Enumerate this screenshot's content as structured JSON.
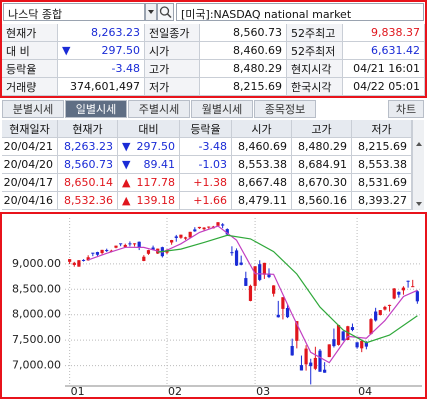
{
  "search": {
    "query": "나스닥 종합",
    "market": "[미국]:NASDAQ national market"
  },
  "quote": [
    [
      {
        "text": "현재가"
      },
      {
        "text": "8,263.23",
        "tone": "down"
      },
      {
        "text": "전일종가"
      },
      {
        "text": "8,560.73"
      },
      {
        "text": "52주최고"
      },
      {
        "text": "9,838.37",
        "tone": "up"
      }
    ],
    [
      {
        "text": "대 비"
      },
      {
        "arrow": "▼",
        "text": "297.50",
        "tone": "down"
      },
      {
        "text": "시가"
      },
      {
        "text": "8,460.69"
      },
      {
        "text": "52주최저"
      },
      {
        "text": "6,631.42",
        "tone": "down"
      }
    ],
    [
      {
        "text": "등락율"
      },
      {
        "text": "-3.48",
        "tone": "down"
      },
      {
        "text": "고가"
      },
      {
        "text": "8,480.29"
      },
      {
        "text": "현지시각"
      },
      {
        "text": "04/21 16:01"
      }
    ],
    [
      {
        "text": "거래량"
      },
      {
        "text": "374,601,497"
      },
      {
        "text": "저가"
      },
      {
        "text": "8,215.69"
      },
      {
        "text": "한국시각"
      },
      {
        "text": "04/22 05:01"
      }
    ]
  ],
  "tabs": {
    "items": [
      "분별시세",
      "일별시세",
      "주별시세",
      "월별시세",
      "종목정보"
    ],
    "active": 1,
    "button": "차트"
  },
  "table": {
    "columns": [
      "현재일자",
      "현재가",
      "대비",
      "등락율",
      "시가",
      "고가",
      "저가"
    ],
    "rows": [
      [
        {
          "text": "20/04/21"
        },
        {
          "text": "8,263.23",
          "tone": "down"
        },
        {
          "arrow": "▼",
          "text": "297.50",
          "tone": "down"
        },
        {
          "text": "-3.48",
          "tone": "down"
        },
        {
          "text": "8,460.69"
        },
        {
          "text": "8,480.29"
        },
        {
          "text": "8,215.69"
        }
      ],
      [
        {
          "text": "20/04/20"
        },
        {
          "text": "8,560.73",
          "tone": "down"
        },
        {
          "arrow": "▼",
          "text": "89.41",
          "tone": "down"
        },
        {
          "text": "-1.03",
          "tone": "down"
        },
        {
          "text": "8,553.38"
        },
        {
          "text": "8,684.91"
        },
        {
          "text": "8,553.38"
        }
      ],
      [
        {
          "text": "20/04/17"
        },
        {
          "text": "8,650.14",
          "tone": "up"
        },
        {
          "arrow": "▲",
          "text": "117.78",
          "tone": "up"
        },
        {
          "text": "+1.38",
          "tone": "up"
        },
        {
          "text": "8,667.48"
        },
        {
          "text": "8,670.30"
        },
        {
          "text": "8,531.69"
        }
      ],
      [
        {
          "text": "20/04/16"
        },
        {
          "text": "8,532.36",
          "tone": "up"
        },
        {
          "arrow": "▲",
          "text": "139.18",
          "tone": "up"
        },
        {
          "text": "+1.66",
          "tone": "up"
        },
        {
          "text": "8,479.11"
        },
        {
          "text": "8,560.16"
        },
        {
          "text": "8,393.27"
        }
      ]
    ]
  },
  "chart_data": {
    "type": "candlestick",
    "up_color": "#e0161d",
    "down_color": "#1a2bd6",
    "grid": true,
    "xlim": [
      -1,
      76
    ],
    "xticks": [
      {
        "value": 0,
        "label": "01"
      },
      {
        "value": 21,
        "label": "02"
      },
      {
        "value": 40,
        "label": "03"
      },
      {
        "value": 62,
        "label": "04"
      }
    ],
    "ylim": [
      6600,
      9900
    ],
    "yticks": [
      {
        "value": 9000,
        "label": "9,000.00"
      },
      {
        "value": 8500,
        "label": "8,500.00"
      },
      {
        "value": 8000,
        "label": "8,000.00"
      },
      {
        "value": 7500,
        "label": "7,500.00"
      },
      {
        "value": 7000,
        "label": "7,000.00"
      }
    ],
    "open": [
      9039,
      8977,
      8944,
      9076,
      9068,
      9219,
      9231,
      9212,
      9272,
      9245,
      9316,
      9403,
      9330,
      9402,
      9391,
      9434,
      9056,
      9197,
      9320,
      9202,
      9327,
      9219,
      9419,
      9538,
      9512,
      9494,
      9517,
      9676,
      9700,
      9680,
      9729,
      9698,
      9746,
      9775,
      9683,
      9229,
      9263,
      9025,
      8720,
      8271,
      8566,
      8993,
      8786,
      8810,
      8412,
      7999,
      8115,
      8132,
      7386,
      7487,
      7010,
      7026,
      7060,
      6938,
      7294,
      6920,
      7168,
      7520,
      7407,
      7671,
      7503,
      7758,
      7459,
      7340,
      7459,
      7620,
      8063,
      7994,
      8101,
      8183,
      8318,
      8449,
      8479.11,
      8667.48,
      8553.38,
      8460.69
    ],
    "high": [
      9093,
      9039,
      9072,
      9091,
      9168,
      9204,
      9237,
      9275,
      9298,
      9276,
      9358,
      9389,
      9396,
      9440,
      9405,
      9439,
      9170,
      9275,
      9358,
      9300,
      9336,
      9289,
      9470,
      9568,
      9573,
      9532,
      9629,
      9719,
      9726,
      9721,
      9735,
      9745,
      9818,
      9799,
      9697,
      9344,
      9303,
      9161,
      8845,
      8590,
      8952,
      9070,
      9020,
      8910,
      8580,
      8272,
      8345,
      8207,
      7530,
      7875,
      7198,
      7401,
      7135,
      7371,
      7326,
      7068,
      7419,
      7729,
      7802,
      7683,
      7782,
      7827,
      7459,
      7502,
      7481,
      7934,
      8136,
      8093,
      8175,
      8197,
      8524,
      8458,
      8560.16,
      8670.3,
      8684.91,
      8480.29
    ],
    "low": [
      8995,
      8944,
      8943,
      9045,
      9060,
      9150,
      9155,
      9185,
      9232,
      9225,
      9305,
      9346,
      9311,
      9343,
      9341,
      9270,
      9052,
      9176,
      9266,
      9193,
      9124,
      9192,
      9375,
      9435,
      9492,
      9470,
      9510,
      9628,
      9685,
      9650,
      9691,
      9693,
      9737,
      9700,
      9560,
      9159,
      8957,
      8970,
      8564,
      8264,
      8475,
      8660,
      8703,
      8720,
      8356,
      7943,
      7908,
      7934,
      7194,
      7339,
      6904,
      6902,
      6631,
      6912,
      6879,
      6860,
      7168,
      7357,
      7393,
      7484,
      7502,
      7676,
      7332,
      7265,
      7321,
      7608,
      7866,
      7987,
      8083,
      8062,
      8304,
      8337,
      8393.27,
      8531.69,
      8553.38,
      8215.69
    ],
    "close": [
      9092,
      9020,
      9071,
      9068,
      9129,
      9203,
      9178,
      9274,
      9251,
      9258,
      9357,
      9388,
      9370,
      9383,
      9402,
      9314,
      9139,
      9269,
      9275,
      9298,
      9150,
      9273,
      9467,
      9508,
      9572,
      9520,
      9628,
      9638,
      9725,
      9711,
      9731,
      9732,
      9817,
      9751,
      9577,
      9221,
      8966,
      8980,
      8566,
      8567,
      8952,
      8684,
      9019,
      8739,
      8576,
      7950,
      8344,
      7952,
      7201,
      7875,
      6905,
      7335,
      6990,
      7151,
      6880,
      6861,
      7418,
      7384,
      7798,
      7502,
      7774,
      7700,
      7360,
      7487,
      7374,
      7913,
      7887,
      8091,
      8153,
      8193,
      8516,
      8394,
      8532.36,
      8650.14,
      8560.73,
      8263.23
    ],
    "lines": [
      {
        "color": "#c23fc2",
        "x": [
          4,
          8,
          12,
          16,
          20,
          24,
          28,
          32,
          36,
          40,
          44,
          48,
          52,
          56,
          60,
          64,
          68,
          72,
          75
        ],
        "values": [
          9076,
          9207,
          9325,
          9322,
          9226,
          9394,
          9617,
          9743,
          9466,
          8806,
          8794,
          8005,
          7261,
          7060,
          7575,
          7539,
          7884,
          8358,
          8480
        ]
      },
      {
        "color": "#2fa83a",
        "x": [
          19,
          24,
          29,
          34,
          39,
          44,
          49,
          54,
          59,
          64,
          69,
          75
        ],
        "values": [
          9230,
          9290,
          9420,
          9560,
          9490,
          9240,
          8800,
          8150,
          7700,
          7450,
          7600,
          7980
        ]
      }
    ]
  }
}
